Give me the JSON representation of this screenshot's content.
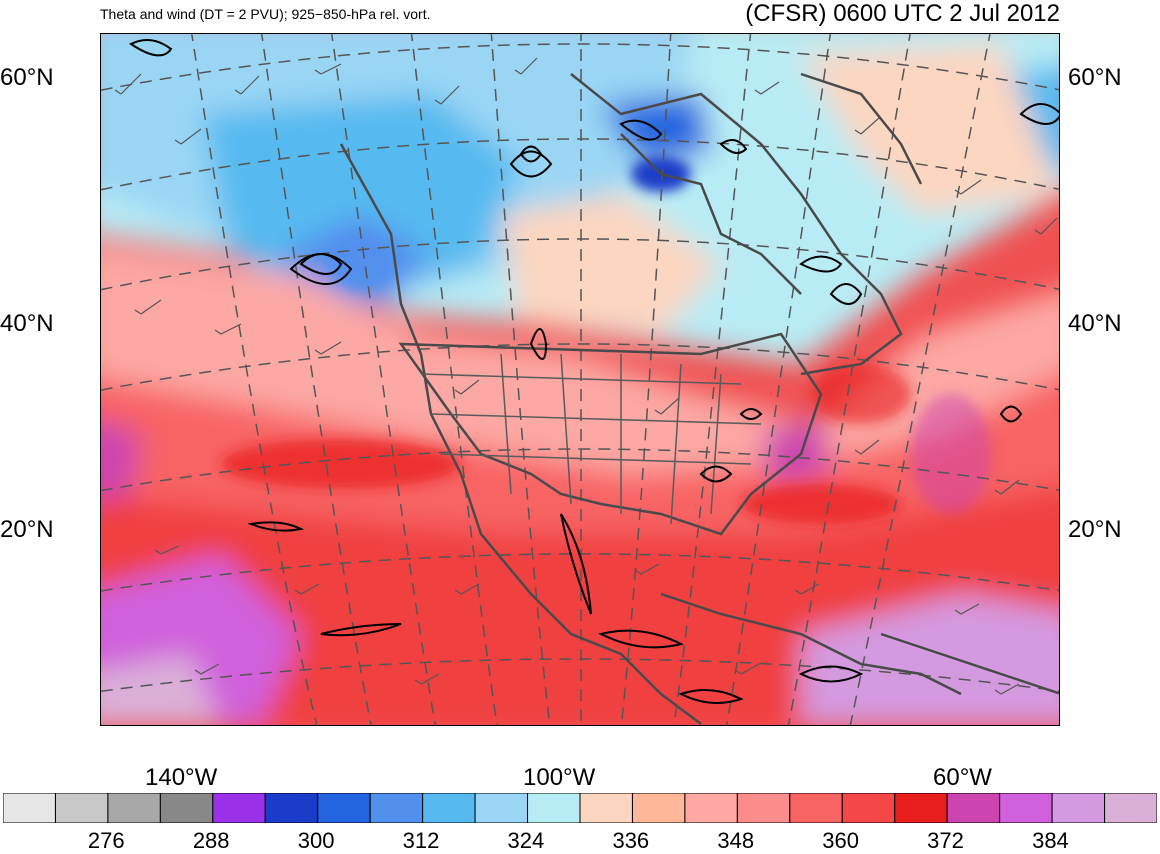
{
  "header": {
    "left_title": "Theta and wind (DT = 2 PVU); 925−850-hPa rel. vort.",
    "right_title": "(CFSR) 0600 UTC 2 Jul 2012"
  },
  "map": {
    "lat_labels_left": [
      "60°N",
      "40°N",
      "20°N"
    ],
    "lat_labels_right": [
      "60°N",
      "40°N",
      "20°N"
    ],
    "lon_labels": [
      "140°W",
      "100°W",
      "60°W"
    ]
  },
  "colorbar": {
    "colors": [
      "#e6e6e6",
      "#c8c8c8",
      "#a8a8a8",
      "#888888",
      "#9a30e8",
      "#1a3cc8",
      "#2466e0",
      "#5290ee",
      "#56baf0",
      "#9ad6f4",
      "#b8ecf4",
      "#fcd6c0",
      "#fcb898",
      "#fca8a4",
      "#fa8c8c",
      "#f86464",
      "#f44848",
      "#e81e1e",
      "#cc44b0",
      "#d060dc",
      "#d49ae0",
      "#dab0d8"
    ],
    "labels": [
      "276",
      "288",
      "300",
      "312",
      "324",
      "336",
      "348",
      "360",
      "372",
      "384"
    ]
  }
}
